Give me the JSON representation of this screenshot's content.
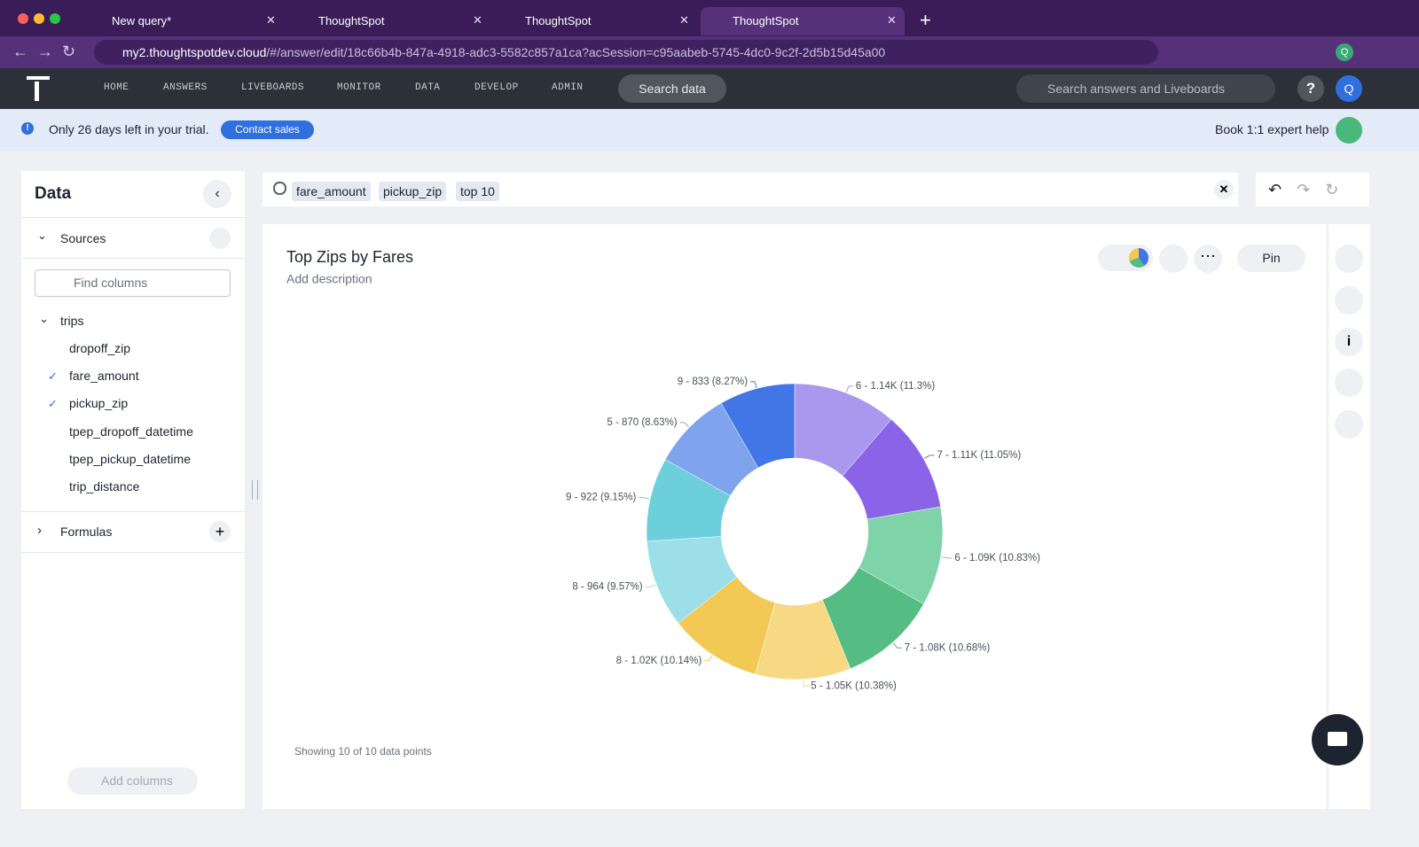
{
  "browser": {
    "tabs": [
      "New query*",
      "ThoughtSpot",
      "ThoughtSpot",
      "ThoughtSpot"
    ],
    "url_host": "my2.thoughtspotdev.cloud",
    "url_path": "/#/answer/edit/18c66b4b-847a-4918-adc3-5582c857a1ca?acSession=c95aabeb-5745-4dc0-9c2f-2d5b15d45a00",
    "profile": "Q"
  },
  "nav": {
    "items": [
      "HOME",
      "ANSWERS",
      "LIVEBOARDS",
      "MONITOR",
      "DATA",
      "DEVELOP",
      "ADMIN"
    ],
    "search_button": "Search data",
    "search_placeholder": "Search answers and Liveboards",
    "help": "?",
    "avatar": "Q"
  },
  "banner": {
    "message": "Only 26 days left in your trial.",
    "button": "Contact sales",
    "help": "Book 1:1 expert help"
  },
  "data_panel": {
    "title": "Data",
    "sources": "Sources",
    "find_placeholder": "Find columns",
    "table": "trips",
    "columns": [
      {
        "name": "dropoff_zip",
        "checked": false
      },
      {
        "name": "fare_amount",
        "checked": true
      },
      {
        "name": "pickup_zip",
        "checked": true
      },
      {
        "name": "tpep_dropoff_datetime",
        "checked": false
      },
      {
        "name": "tpep_pickup_datetime",
        "checked": false
      },
      {
        "name": "trip_distance",
        "checked": false
      }
    ],
    "formulas": "Formulas",
    "add_columns": "Add columns"
  },
  "search": {
    "tokens": [
      "fare_amount",
      "pickup_zip",
      "top 10"
    ]
  },
  "answer": {
    "pin": "Pin",
    "footer": "Showing 10 of 10 data points"
  },
  "chart_data": {
    "type": "donut",
    "title": "Top Zips by Fares",
    "subtitle": "Add description",
    "values": [
      1140,
      1110,
      1090,
      1080,
      1050,
      1020,
      964,
      922,
      870,
      833
    ],
    "value_labels": [
      "6 - 1.14K (11.3%)",
      "7 - 1.11K (11.05%)",
      "6 - 1.09K (10.83%)",
      "7 - 1.08K (10.68%)",
      "5 - 1.05K (10.38%)",
      "8 - 1.02K (10.14%)",
      "8 - 964 (9.57%)",
      "9 - 922 (9.15%)",
      "5 - 870 (8.63%)",
      "9 - 833 (8.27%)"
    ],
    "colors": [
      "#a998ee",
      "#8a63e7",
      "#7fd3a8",
      "#55bd83",
      "#f6d982",
      "#f2c955",
      "#9ddfe9",
      "#6dcfdb",
      "#7fa3ec",
      "#4275e6"
    ]
  }
}
